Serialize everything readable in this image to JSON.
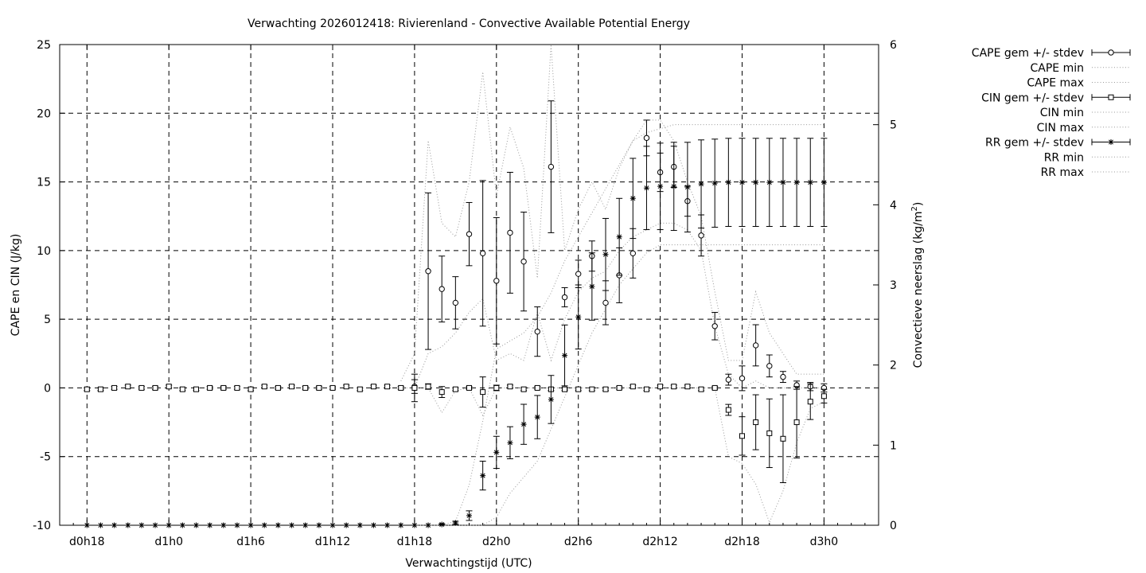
{
  "chart_data": {
    "type": "line",
    "title": "Verwachting 2026012418: Rivierenland - Convective Available Potential Energy",
    "xlabel": "Verwachtingstijd (UTC)",
    "ylabel": "CAPE en CIN (J/kg)",
    "y2label_prefix": "Convectieve neerslag (kg/m",
    "y2label_sup": "2",
    "y2label_suffix": ")",
    "x_start_hour": 18,
    "xlim_hours": [
      16,
      76
    ],
    "xticks": [
      {
        "label": "d0h18",
        "hour": 18
      },
      {
        "label": "d1h0",
        "hour": 24
      },
      {
        "label": "d1h6",
        "hour": 30
      },
      {
        "label": "d1h12",
        "hour": 36
      },
      {
        "label": "d1h18",
        "hour": 42
      },
      {
        "label": "d2h0",
        "hour": 48
      },
      {
        "label": "d2h6",
        "hour": 54
      },
      {
        "label": "d2h12",
        "hour": 60
      },
      {
        "label": "d2h18",
        "hour": 66
      },
      {
        "label": "d3h0",
        "hour": 72
      }
    ],
    "ylim": [
      -10,
      25
    ],
    "yticks": [
      -10,
      -5,
      0,
      5,
      10,
      15,
      20,
      25
    ],
    "y2lim": [
      0,
      6
    ],
    "y2ticks": [
      0,
      1,
      2,
      3,
      4,
      5,
      6
    ],
    "grid": true,
    "legend_position": "outside-top-right",
    "legend": [
      "CAPE gem +/- stdev",
      "CAPE min",
      "CAPE max",
      "CIN gem +/- stdev",
      "CIN min",
      "CIN max",
      "RR gem +/- stdev",
      "RR min",
      "RR max"
    ],
    "series": [
      {
        "name": "CAPE gem +/- stdev",
        "axis": "y1",
        "marker": "circle",
        "hours": [
          42,
          43,
          44,
          45,
          46,
          47,
          48,
          49,
          50,
          51,
          52,
          53,
          54,
          55,
          56,
          57,
          58,
          59,
          60,
          61,
          62,
          63,
          64,
          65,
          66,
          67,
          68,
          69,
          70,
          71,
          72
        ],
        "mean": [
          0.1,
          8.5,
          7.2,
          6.2,
          11.2,
          9.8,
          7.8,
          11.3,
          9.2,
          4.1,
          16.1,
          6.6,
          8.3,
          9.6,
          6.2,
          8.2,
          9.8,
          18.2,
          15.7,
          16.1,
          13.6,
          11.1,
          4.5,
          0.6,
          0.7,
          3.1,
          1.6,
          0.8,
          0.2,
          0.1,
          0.0
        ],
        "stdev": [
          0.5,
          5.7,
          2.4,
          1.9,
          2.3,
          5.3,
          4.6,
          4.4,
          3.6,
          1.8,
          4.8,
          0.7,
          1.0,
          1.1,
          1.6,
          2.0,
          1.8,
          1.3,
          1.4,
          1.5,
          1.1,
          1.5,
          1.0,
          0.4,
          0.9,
          1.5,
          0.8,
          0.4,
          0.3,
          0.3,
          0.3
        ]
      },
      {
        "name": "CIN gem +/- stdev",
        "axis": "y1",
        "marker": "square",
        "hours": [
          18,
          19,
          20,
          21,
          22,
          23,
          24,
          25,
          26,
          27,
          28,
          29,
          30,
          31,
          32,
          33,
          34,
          35,
          36,
          37,
          38,
          39,
          40,
          41,
          42,
          43,
          44,
          45,
          46,
          47,
          48,
          49,
          50,
          51,
          52,
          53,
          54,
          55,
          56,
          57,
          58,
          59,
          60,
          61,
          62,
          63,
          64,
          65,
          66,
          67,
          68,
          69,
          70,
          71,
          72
        ],
        "mean": [
          -0.1,
          -0.1,
          0.0,
          0.1,
          0.0,
          0.0,
          0.1,
          -0.1,
          -0.1,
          0.0,
          0.0,
          0.0,
          -0.1,
          0.1,
          0.0,
          0.1,
          0.0,
          0.0,
          0.0,
          0.1,
          -0.1,
          0.1,
          0.1,
          0.0,
          0.0,
          0.1,
          -0.3,
          -0.1,
          0.0,
          -0.3,
          0.0,
          0.1,
          -0.1,
          0.0,
          -0.1,
          -0.1,
          -0.1,
          -0.1,
          -0.1,
          0.0,
          0.1,
          -0.1,
          0.1,
          0.1,
          0.1,
          -0.1,
          0.0,
          -1.6,
          -3.5,
          -2.5,
          -3.3,
          -3.7,
          -2.5,
          -1.0,
          -0.6
        ],
        "stdev": [
          0.1,
          0.1,
          0.1,
          0.1,
          0.1,
          0.1,
          0.1,
          0.1,
          0.1,
          0.1,
          0.1,
          0.1,
          0.1,
          0.1,
          0.1,
          0.1,
          0.1,
          0.1,
          0.1,
          0.1,
          0.1,
          0.1,
          0.1,
          0.1,
          1.0,
          0.2,
          0.4,
          0.1,
          0.1,
          1.1,
          0.2,
          0.1,
          0.1,
          0.1,
          0.1,
          0.1,
          0.1,
          0.1,
          0.1,
          0.1,
          0.1,
          0.1,
          0.1,
          0.1,
          0.1,
          0.1,
          0.1,
          0.4,
          1.4,
          2.0,
          2.5,
          3.2,
          2.6,
          1.3,
          0.5
        ]
      },
      {
        "name": "RR gem +/- stdev",
        "axis": "y2",
        "marker": "star",
        "hours": [
          18,
          19,
          20,
          21,
          22,
          23,
          24,
          25,
          26,
          27,
          28,
          29,
          30,
          31,
          32,
          33,
          34,
          35,
          36,
          37,
          38,
          39,
          40,
          41,
          42,
          43,
          44,
          45,
          46,
          47,
          48,
          49,
          50,
          51,
          52,
          53,
          54,
          55,
          56,
          57,
          58,
          59,
          60,
          61,
          62,
          63,
          64,
          65,
          66,
          67,
          68,
          69,
          70,
          71,
          72
        ],
        "mean": [
          0,
          0,
          0,
          0,
          0,
          0,
          0,
          0,
          0,
          0,
          0,
          0,
          0,
          0,
          0,
          0,
          0,
          0,
          0,
          0,
          0,
          0,
          0,
          0,
          0,
          0,
          0.01,
          0.03,
          0.12,
          0.62,
          0.91,
          1.03,
          1.26,
          1.35,
          1.57,
          2.12,
          2.6,
          2.98,
          3.38,
          3.6,
          4.08,
          4.21,
          4.23,
          4.23,
          4.22,
          4.26,
          4.27,
          4.28,
          4.28,
          4.28,
          4.28,
          4.28,
          4.28,
          4.28,
          4.28
        ],
        "stdev": [
          0,
          0,
          0,
          0,
          0,
          0,
          0,
          0,
          0,
          0,
          0,
          0,
          0,
          0,
          0,
          0,
          0,
          0,
          0,
          0,
          0,
          0,
          0,
          0,
          0,
          0,
          0.01,
          0.02,
          0.06,
          0.18,
          0.2,
          0.2,
          0.25,
          0.27,
          0.3,
          0.38,
          0.4,
          0.42,
          0.45,
          0.48,
          0.5,
          0.52,
          0.54,
          0.55,
          0.56,
          0.55,
          0.55,
          0.55,
          0.55,
          0.55,
          0.55,
          0.55,
          0.55,
          0.55,
          0.55
        ]
      },
      {
        "name": "CAPE max",
        "axis": "y1",
        "line": "dotted",
        "hours": [
          41,
          42,
          43,
          44,
          45,
          46,
          47,
          48,
          49,
          50,
          51,
          52,
          53,
          54,
          55,
          56,
          57,
          58,
          59,
          60,
          61,
          62,
          63,
          64,
          65,
          66,
          67,
          68,
          69,
          70,
          71,
          72
        ],
        "values": [
          0.5,
          2.5,
          18.0,
          12.0,
          11.0,
          15.0,
          23.0,
          14.0,
          19.0,
          16.0,
          8.0,
          25.0,
          10.0,
          13.0,
          15.0,
          13.0,
          16.0,
          18.0,
          19.5,
          19.5,
          18.0,
          15.0,
          12.5,
          7.0,
          2.0,
          2.0,
          7.0,
          4.0,
          2.5,
          1.0,
          1.0,
          1.0
        ]
      },
      {
        "name": "CAPE min",
        "axis": "y1",
        "line": "dotted",
        "hours": [
          42,
          43,
          44,
          45,
          46,
          47,
          48,
          49,
          50,
          51,
          52,
          53,
          54,
          55,
          56,
          57,
          58,
          59,
          60,
          61,
          62,
          63,
          64,
          65,
          66,
          67,
          68,
          69,
          70,
          71,
          72
        ],
        "values": [
          0.0,
          2.5,
          3.0,
          4.0,
          5.5,
          6.5,
          2.0,
          2.5,
          2.0,
          5.5,
          2.0,
          5.0,
          7.0,
          8.0,
          8.5,
          10.0,
          11.0,
          11.5,
          12.0,
          12.0,
          11.5,
          10.0,
          4.5,
          1.0,
          0.0,
          0.5,
          0.0,
          0.0,
          0.0,
          0.0,
          0.0
        ]
      },
      {
        "name": "CIN min",
        "axis": "y1",
        "line": "dotted",
        "hours": [
          41,
          42,
          43,
          44,
          45,
          46,
          47,
          48,
          49,
          50,
          51,
          52,
          53,
          54,
          55,
          56,
          57,
          58,
          59,
          60,
          61,
          62,
          63,
          64,
          65,
          66,
          67,
          68,
          69,
          70,
          71,
          72
        ],
        "values": [
          0,
          0,
          0,
          -1.8,
          -0.2,
          0,
          -2.0,
          0,
          0,
          0,
          0,
          0,
          0,
          0,
          0,
          0,
          0,
          0,
          0,
          0,
          0,
          0,
          0,
          0,
          -5.0,
          -5.5,
          -7.0,
          -9.8,
          -7.5,
          -4.0,
          -1.5,
          -1.0
        ]
      },
      {
        "name": "RR max",
        "axis": "y2",
        "line": "dotted",
        "hours": [
          42,
          43,
          44,
          45,
          46,
          47,
          48,
          49,
          50,
          51,
          52,
          53,
          54,
          55,
          56,
          57,
          58,
          59,
          60,
          61,
          62,
          63,
          64,
          65,
          66,
          67,
          68,
          69,
          70,
          71,
          72
        ],
        "values": [
          0,
          0,
          0,
          0.05,
          0.5,
          1.3,
          2.2,
          2.3,
          2.4,
          2.6,
          2.9,
          3.3,
          3.6,
          3.9,
          4.2,
          4.5,
          4.8,
          4.9,
          4.95,
          5.0,
          5.0,
          5.0,
          5.0,
          5.0,
          5.0,
          5.0,
          5.0,
          5.0,
          5.0,
          5.0,
          5.0
        ]
      },
      {
        "name": "RR min",
        "axis": "y2",
        "line": "dotted",
        "hours": [
          42,
          43,
          44,
          45,
          46,
          47,
          48,
          49,
          50,
          51,
          52,
          53,
          54,
          55,
          56,
          57,
          58,
          59,
          60,
          61,
          62,
          63,
          64,
          65,
          66,
          67,
          68,
          69,
          70,
          71,
          72
        ],
        "values": [
          0,
          0,
          0,
          0,
          0,
          0,
          0.1,
          0.4,
          0.6,
          0.8,
          1.2,
          1.6,
          2.0,
          2.4,
          2.7,
          3.0,
          3.2,
          3.4,
          3.5,
          3.5,
          3.5,
          3.5,
          3.5,
          3.5,
          3.5,
          3.5,
          3.5,
          3.5,
          3.5,
          3.5,
          3.5
        ]
      }
    ]
  }
}
